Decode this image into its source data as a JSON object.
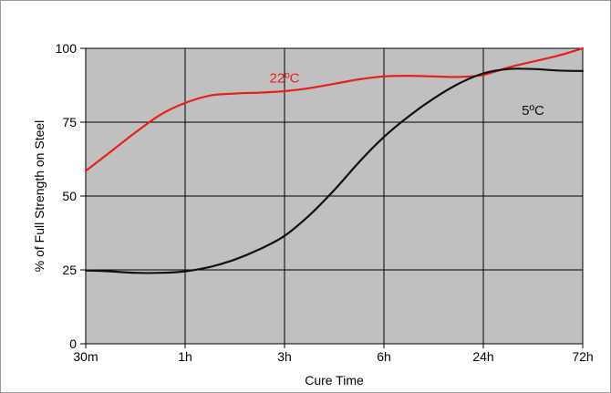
{
  "chart_data": {
    "type": "line",
    "title": "",
    "xlabel": "Cure Time",
    "ylabel": "% of Full Strength on Steel",
    "categories": [
      "30m",
      "1h",
      "3h",
      "6h",
      "24h",
      "72h"
    ],
    "yticks": [
      0,
      25,
      50,
      75,
      100
    ],
    "ylim": [
      0,
      100
    ],
    "grid": true,
    "legend": "none",
    "series": [
      {
        "name": "22ºC",
        "color": "#e8201a",
        "x": [
          0,
          0.25,
          0.5,
          0.75,
          1.0,
          1.25,
          1.5,
          1.75,
          2.0,
          2.25,
          2.5,
          2.75,
          3.0,
          3.25,
          3.5,
          3.75,
          4.0,
          4.25,
          4.5,
          4.75,
          5.0
        ],
        "values": [
          58.5,
          65,
          71.5,
          77.5,
          81.5,
          84,
          84.7,
          85,
          85.5,
          86.5,
          88,
          89.5,
          90.5,
          90.7,
          90.5,
          90.3,
          91,
          93.5,
          95.5,
          97.5,
          100
        ]
      },
      {
        "name": "5ºC",
        "color": "#111111",
        "x": [
          0,
          0.25,
          0.5,
          0.75,
          1.0,
          1.25,
          1.5,
          1.75,
          2.0,
          2.25,
          2.5,
          2.75,
          3.0,
          3.25,
          3.5,
          3.75,
          4.0,
          4.25,
          4.5,
          4.75,
          5.0
        ],
        "values": [
          24.8,
          24.5,
          24,
          24,
          24.5,
          26,
          28.5,
          32,
          36.5,
          43.5,
          52,
          61.5,
          70,
          77,
          83,
          88,
          91.5,
          93,
          93,
          92.5,
          92.3
        ]
      }
    ]
  },
  "colors": {
    "plot_background": "#c0c0c0",
    "grid": "#000000"
  }
}
